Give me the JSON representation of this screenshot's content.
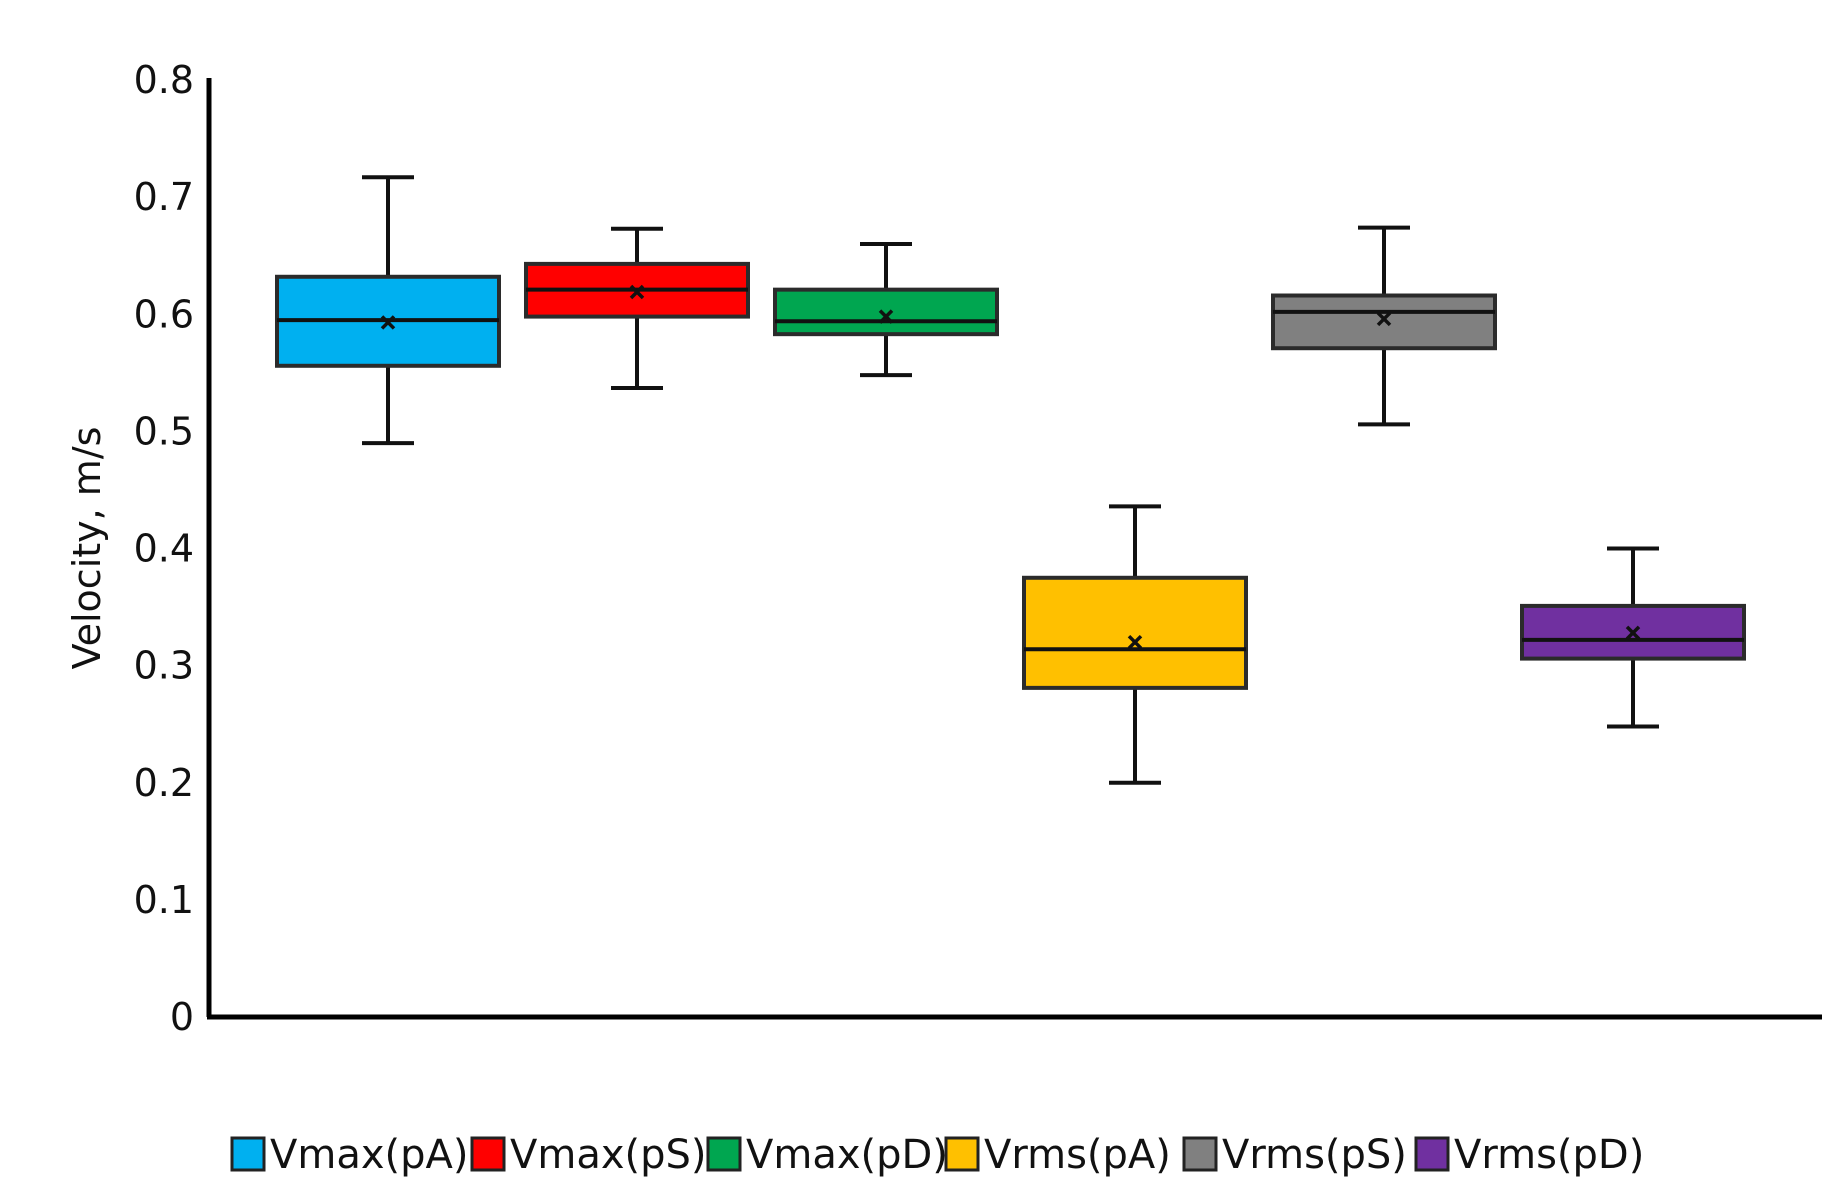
{
  "chart_data": {
    "type": "box",
    "title": "",
    "xlabel": "",
    "ylabel": "Velocity, m/s",
    "ylim": [
      0,
      0.8
    ],
    "yticks": [
      "0",
      "0.1",
      "0.2",
      "0.3",
      "0.4",
      "0.5",
      "0.6",
      "0.7",
      "0.8"
    ],
    "grid": false,
    "legend_position": "bottom",
    "series": [
      {
        "name": "Vmax(pA)",
        "color": "#00b0f0",
        "min": 0.49,
        "q1": 0.556,
        "median": 0.595,
        "q3": 0.632,
        "max": 0.717,
        "mean": 0.593
      },
      {
        "name": "Vmax(pS)",
        "color": "#ff0000",
        "min": 0.537,
        "q1": 0.598,
        "median": 0.621,
        "q3": 0.643,
        "max": 0.673,
        "mean": 0.619
      },
      {
        "name": "Vmax(pD)",
        "color": "#00a650",
        "min": 0.548,
        "q1": 0.583,
        "median": 0.594,
        "q3": 0.621,
        "max": 0.66,
        "mean": 0.598
      },
      {
        "name": "Vrms(pA)",
        "color": "#ffc000",
        "min": 0.2,
        "q1": 0.281,
        "median": 0.314,
        "q3": 0.375,
        "max": 0.436,
        "mean": 0.32
      },
      {
        "name": "Vrms(pS)",
        "color": "#808080",
        "min": 0.506,
        "q1": 0.571,
        "median": 0.602,
        "q3": 0.616,
        "max": 0.674,
        "mean": 0.596
      },
      {
        "name": "Vrms(pD)",
        "color": "#7030a0",
        "min": 0.248,
        "q1": 0.306,
        "median": 0.322,
        "q3": 0.351,
        "max": 0.4,
        "mean": 0.328
      }
    ]
  }
}
